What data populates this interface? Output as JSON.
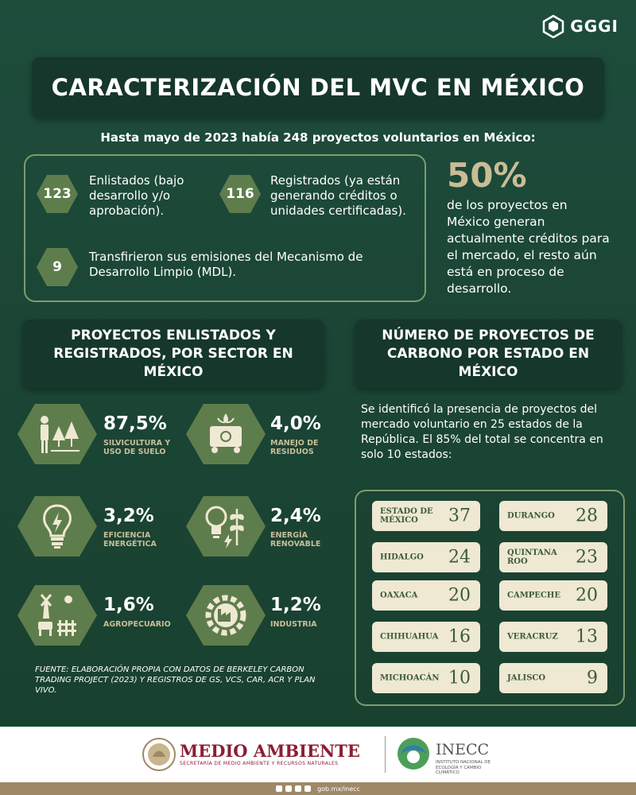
{
  "logo": {
    "text": "GGGI"
  },
  "title": "CARACTERIZACIÓN DEL MVC EN MÉXICO",
  "intro": "Hasta mayo de 2023 había 248 proyectos voluntarios en México:",
  "stats": {
    "enlistados": {
      "value": "123",
      "text": "Enlistados (bajo desarrollo y/o aprobación)."
    },
    "registrados": {
      "value": "116",
      "text": "Registrados (ya están generando créditos o unidades certificadas)."
    },
    "transfirieron": {
      "value": "9",
      "text": "Transfirieron sus emisiones del Mecanismo de Desarrollo Limpio (MDL)."
    }
  },
  "highlight": {
    "value": "50%",
    "text": "de los proyectos en México generan actualmente créditos para el mercado, el resto aún está en proceso de desarrollo."
  },
  "sectors_section": {
    "title": "PROYECTOS ENLISTADOS Y REGISTRADOS, POR SECTOR EN MÉXICO"
  },
  "sectors": [
    {
      "pct": "87,5%",
      "label": "SILVICULTURA Y USO DE SUELO",
      "icon": "forestry-icon"
    },
    {
      "pct": "4,0%",
      "label": "MANEJO DE RESIDUOS",
      "icon": "waste-icon"
    },
    {
      "pct": "3,2%",
      "label": "EFICIENCIA ENERGÉTICA",
      "icon": "lightbulb-icon"
    },
    {
      "pct": "2,4%",
      "label": "ENERGÍA RENOVABLE",
      "icon": "renewable-icon"
    },
    {
      "pct": "1,6%",
      "label": "AGROPECUARIO",
      "icon": "farm-icon"
    },
    {
      "pct": "1,2%",
      "label": "INDUSTRIA",
      "icon": "industry-icon"
    }
  ],
  "states_section": {
    "title": "NÚMERO DE PROYECTOS DE CARBONO POR ESTADO EN MÉXICO",
    "description": "Se identificó la presencia de proyectos del mercado voluntario en 25 estados de la República. El 85% del total se concentra en solo 10 estados:"
  },
  "states": [
    {
      "name": "ESTADO DE MÉXICO",
      "count": "37"
    },
    {
      "name": "DURANGO",
      "count": "28"
    },
    {
      "name": "HIDALGO",
      "count": "24"
    },
    {
      "name": "QUINTANA ROO",
      "count": "23"
    },
    {
      "name": "OAXACA",
      "count": "20"
    },
    {
      "name": "CAMPECHE",
      "count": "20"
    },
    {
      "name": "CHIHUAHUA",
      "count": "16"
    },
    {
      "name": "VERACRUZ",
      "count": "13"
    },
    {
      "name": "MICHOACÁN",
      "count": "10"
    },
    {
      "name": "JALISCO",
      "count": "9"
    }
  ],
  "source": "FUENTE: ELABORACIÓN PROPIA CON DATOS DE BERKELEY CARBON TRADING PROJECT (2023) Y REGISTROS DE GS, VCS, CAR, ACR Y PLAN VIVO.",
  "footer": {
    "medio_ambiente": "MEDIO AMBIENTE",
    "medio_ambiente_sub": "SECRETARÍA DE MEDIO AMBIENTE Y RECURSOS NATURALES",
    "inecc": "INECC",
    "inecc_sub": "INSTITUTO NACIONAL DE ECOLOGÍA Y CAMBIO CLIMÁTICO",
    "url": "gob.mx/inecc"
  },
  "colors": {
    "background": "#1e4d3c",
    "dark_box": "#16372b",
    "accent_green": "#5e7d4c",
    "beige": "#c9bd97",
    "card": "#efe8d3",
    "maroon": "#8b1e33"
  }
}
